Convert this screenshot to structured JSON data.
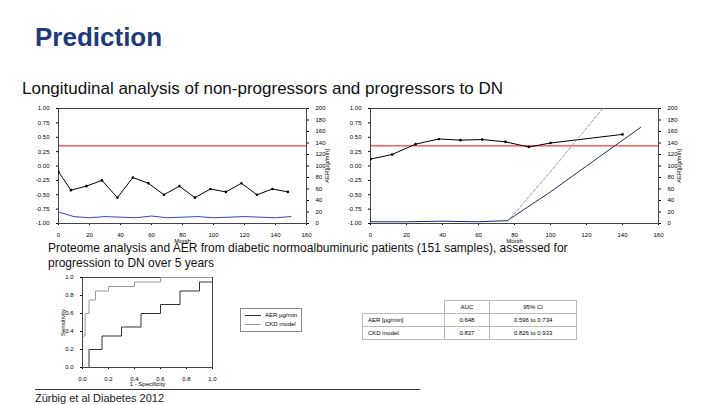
{
  "title": "Prediction",
  "subtitle": "Longitudinal analysis of non-progressors and progressors to DN",
  "chart_data": [
    {
      "type": "line",
      "x_label": "Month",
      "y2_label": "AER[µg/min]",
      "xlim": [
        0,
        160
      ],
      "xticks": [
        0,
        20,
        40,
        60,
        80,
        100,
        120,
        140,
        160
      ],
      "ylim": [
        -1,
        1
      ],
      "yticks": [
        {
          "value": -1,
          "label": "-1.00"
        },
        -0.75,
        {
          "value": -0.5,
          "label": "-0.50"
        },
        -0.25,
        {
          "value": 0,
          "label": "0.00"
        },
        0.25,
        {
          "value": 0.5,
          "label": "0.50"
        },
        0.75,
        {
          "value": 1,
          "label": "1.00"
        }
      ],
      "y2lim": [
        0,
        200
      ],
      "y2ticks": [
        0,
        20,
        40,
        60,
        80,
        100,
        120,
        140,
        160,
        180,
        200
      ],
      "cutoff": 0.35,
      "series": [
        {
          "color": "#000000",
          "marker": "circle",
          "x": [
            0,
            8,
            18,
            28,
            38,
            48,
            58,
            68,
            78,
            88,
            98,
            108,
            118,
            128,
            138,
            148
          ],
          "values": [
            -0.1,
            -0.42,
            -0.35,
            -0.25,
            -0.55,
            -0.2,
            -0.3,
            -0.5,
            -0.35,
            -0.55,
            -0.4,
            -0.45,
            -0.3,
            -0.5,
            -0.4,
            -0.45
          ]
        },
        {
          "color": "#2e4bb3",
          "axis": "y2",
          "x": [
            0,
            10,
            20,
            30,
            40,
            50,
            60,
            70,
            80,
            90,
            100,
            110,
            120,
            130,
            140,
            150
          ],
          "values": [
            20,
            12,
            10,
            12,
            11,
            10,
            13,
            10,
            11,
            12,
            10,
            11,
            12,
            11,
            10,
            12
          ]
        }
      ]
    },
    {
      "type": "line",
      "x_label": "Month",
      "y2_label": "AER[µg/min]",
      "xlim": [
        0,
        160
      ],
      "xticks": [
        0,
        20,
        40,
        60,
        80,
        100,
        120,
        140,
        160
      ],
      "ylim": [
        -1,
        1
      ],
      "yticks": [
        {
          "value": -1,
          "label": "-1.00"
        },
        -0.75,
        {
          "value": -0.5,
          "label": "-0.50"
        },
        -0.25,
        {
          "value": 0,
          "label": "0.00"
        },
        0.25,
        {
          "value": 0.5,
          "label": "0.50"
        },
        0.75,
        {
          "value": 1,
          "label": "1.00"
        }
      ],
      "y2lim": [
        0,
        200
      ],
      "y2ticks": [
        0,
        20,
        40,
        60,
        80,
        100,
        120,
        140,
        160,
        180,
        200
      ],
      "cutoff": 0.35,
      "series": [
        {
          "color": "#000000",
          "marker": "circle",
          "x": [
            0,
            12,
            25,
            38,
            50,
            62,
            75,
            88,
            100,
            140
          ],
          "values": [
            0.12,
            0.2,
            0.38,
            0.47,
            0.45,
            0.46,
            0.42,
            0.33,
            0.4,
            0.55
          ]
        },
        {
          "color": "#1f2a6b",
          "axis": "y2",
          "x": [
            0,
            20,
            40,
            60,
            76,
            100,
            120,
            150
          ],
          "values": [
            3,
            3,
            4,
            3,
            5,
            55,
            100,
            167
          ]
        },
        {
          "color": "#9a9a9a",
          "axis": "y2",
          "line_style": "dashed",
          "x": [
            76,
            100,
            129
          ],
          "values": [
            3,
            90,
            200
          ]
        }
      ]
    },
    {
      "type": "line",
      "x_label": "1 - Specificity",
      "y_label": "Sensitivity",
      "xlim": [
        0,
        1
      ],
      "xticks": [
        {
          "value": 0,
          "label": "0.0"
        },
        0.2,
        0.4,
        0.6,
        0.8,
        {
          "value": 1,
          "label": "1.0"
        }
      ],
      "ylim": [
        0,
        1
      ],
      "yticks": [
        {
          "value": 0,
          "label": "0.0"
        },
        0.2,
        0.4,
        0.6,
        0.8,
        {
          "value": 1,
          "label": "1.0"
        }
      ],
      "legend": "right",
      "series": [
        {
          "name": "AER µg/min",
          "color": "#333333",
          "line_style": "step",
          "x": [
            0,
            0.05,
            0.15,
            0.3,
            0.45,
            0.6,
            0.75,
            0.9,
            1
          ],
          "values": [
            0,
            0.2,
            0.35,
            0.45,
            0.6,
            0.7,
            0.85,
            0.95,
            1
          ]
        },
        {
          "name": "CKD model",
          "color": "#999999",
          "line_style": "step",
          "x": [
            0,
            0.02,
            0.05,
            0.1,
            0.2,
            0.4,
            0.6,
            1
          ],
          "values": [
            0.35,
            0.6,
            0.75,
            0.85,
            0.9,
            0.95,
            1,
            1
          ]
        }
      ]
    }
  ],
  "caption": "Proteome analysis and AER from diabetic normoalbuminuric patients (151 samples), assessed for progression to DN over 5 years",
  "table": {
    "header": [
      "",
      "AUC",
      "95% CI"
    ],
    "rows": [
      [
        "AER [µg/min]",
        "0.648",
        "0.596 to 0.734"
      ],
      [
        "CKD model",
        "0.837",
        "0.826 to 0.933"
      ]
    ]
  },
  "citation": "Zürbig et al  Diabetes 2012"
}
